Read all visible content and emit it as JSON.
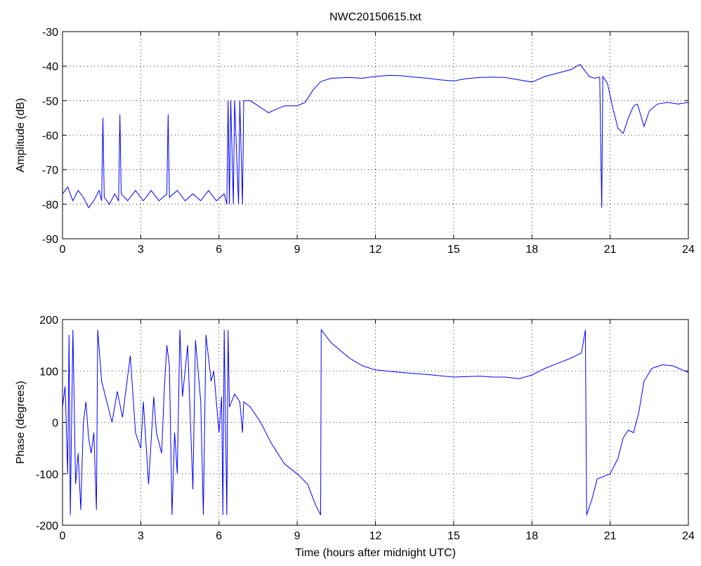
{
  "chart_data": [
    {
      "type": "line",
      "title": "NWC20150615.txt",
      "ylabel": "Amplitude (dB)",
      "x": [
        0,
        0.2,
        0.4,
        0.6,
        0.8,
        1.0,
        1.2,
        1.4,
        1.5,
        1.55,
        1.6,
        1.8,
        2.0,
        2.15,
        2.2,
        2.25,
        2.5,
        2.8,
        3.1,
        3.4,
        3.7,
        4.0,
        4.05,
        4.1,
        4.4,
        4.7,
        5.0,
        5.3,
        5.6,
        5.9,
        6.2,
        6.3,
        6.35,
        6.4,
        6.45,
        6.55,
        6.6,
        6.75,
        6.8,
        6.9,
        6.95,
        7.2,
        7.5,
        7.9,
        8.2,
        8.5,
        9.0,
        9.3,
        9.6,
        9.9,
        10.3,
        11.0,
        11.5,
        12.0,
        12.5,
        13.0,
        13.5,
        14.0,
        14.5,
        15.0,
        15.5,
        16.0,
        16.5,
        17.0,
        17.5,
        18.0,
        18.5,
        19.0,
        19.5,
        19.85,
        20.0,
        20.2,
        20.4,
        20.6,
        20.68,
        20.72,
        20.9,
        21.1,
        21.3,
        21.5,
        21.7,
        21.9,
        22.05,
        22.3,
        22.5,
        22.8,
        23.2,
        23.6,
        24
      ],
      "values": [
        -77,
        -75,
        -79,
        -76,
        -78,
        -81,
        -79,
        -76,
        -79,
        -55,
        -78,
        -80,
        -77,
        -79,
        -54,
        -77,
        -79,
        -76,
        -79,
        -76,
        -79,
        -77,
        -54,
        -78,
        -76,
        -79,
        -77,
        -79,
        -76,
        -79,
        -77,
        -80,
        -50,
        -80,
        -50,
        -80,
        -50,
        -80,
        -50,
        -80,
        -50,
        -50,
        -51.5,
        -53.5,
        -52.5,
        -51.5,
        -51.5,
        -50.5,
        -47,
        -44.5,
        -43.5,
        -43.3,
        -43.5,
        -43,
        -42.7,
        -42.8,
        -43.2,
        -43.5,
        -44,
        -44.3,
        -43.6,
        -43.3,
        -43.2,
        -43.3,
        -44,
        -44.6,
        -43,
        -42,
        -41,
        -39.5,
        -41,
        -43,
        -43.5,
        -43.2,
        -81,
        -43,
        -45,
        -52,
        -58,
        -59.5,
        -55,
        -51.5,
        -51,
        -57.5,
        -53,
        -51,
        -50.5,
        -51,
        -50.5
      ],
      "color": "#0000ff",
      "xlim": [
        0,
        24
      ],
      "xticks": [
        0,
        3,
        6,
        9,
        12,
        15,
        18,
        21,
        24
      ],
      "ylim": [
        -90,
        -30
      ],
      "yticks": [
        -90,
        -80,
        -70,
        -60,
        -50,
        -40,
        -30
      ],
      "grid": true
    },
    {
      "type": "line",
      "xlabel": "Time (hours after midnight UTC)",
      "ylabel": "Phase (degrees)",
      "x": [
        0,
        0.1,
        0.2,
        0.25,
        0.3,
        0.4,
        0.5,
        0.6,
        0.7,
        0.8,
        0.9,
        1.0,
        1.1,
        1.2,
        1.3,
        1.35,
        1.5,
        1.7,
        1.9,
        2.1,
        2.3,
        2.5,
        2.6,
        2.8,
        3.0,
        3.1,
        3.3,
        3.5,
        3.6,
        3.8,
        3.9,
        4.0,
        4.1,
        4.2,
        4.3,
        4.4,
        4.5,
        4.6,
        4.8,
        5.0,
        5.1,
        5.3,
        5.4,
        5.5,
        5.7,
        5.8,
        6.0,
        6.1,
        6.15,
        6.2,
        6.3,
        6.35,
        6.4,
        6.6,
        6.8,
        6.9,
        6.95,
        7.2,
        7.6,
        8.0,
        8.5,
        9.0,
        9.4,
        9.7,
        9.9,
        9.92,
        10.3,
        11.0,
        11.5,
        12,
        13,
        14,
        15,
        16,
        16.5,
        17,
        17.5,
        18,
        18.5,
        19,
        19.5,
        19.9,
        20.05,
        20.1,
        20.3,
        20.5,
        21,
        21.3,
        21.5,
        21.7,
        21.9,
        22.1,
        22.3,
        22.6,
        23,
        23.4,
        24
      ],
      "values": [
        30,
        70,
        -100,
        170,
        -180,
        180,
        -120,
        -60,
        -170,
        0,
        40,
        -30,
        -60,
        -20,
        -170,
        180,
        80,
        40,
        0,
        60,
        10,
        90,
        130,
        -20,
        -50,
        40,
        -120,
        50,
        -20,
        -60,
        60,
        150,
        110,
        -180,
        -20,
        -100,
        180,
        50,
        150,
        -130,
        160,
        40,
        -180,
        170,
        80,
        100,
        -20,
        50,
        -180,
        180,
        -180,
        180,
        30,
        55,
        40,
        -20,
        40,
        30,
        0,
        -40,
        -80,
        -100,
        -120,
        -160,
        -180,
        180,
        155,
        125,
        110,
        102,
        97,
        93,
        88,
        90,
        88,
        88,
        85,
        92,
        105,
        115,
        125,
        135,
        180,
        -180,
        -150,
        -110,
        -100,
        -70,
        -30,
        -15,
        -20,
        20,
        80,
        105,
        112,
        110,
        97
      ],
      "color": "#0000ff",
      "xlim": [
        0,
        24
      ],
      "xticks": [
        0,
        3,
        6,
        9,
        12,
        15,
        18,
        21,
        24
      ],
      "ylim": [
        -200,
        200
      ],
      "yticks": [
        -200,
        -100,
        0,
        100,
        200
      ],
      "grid": true
    }
  ]
}
